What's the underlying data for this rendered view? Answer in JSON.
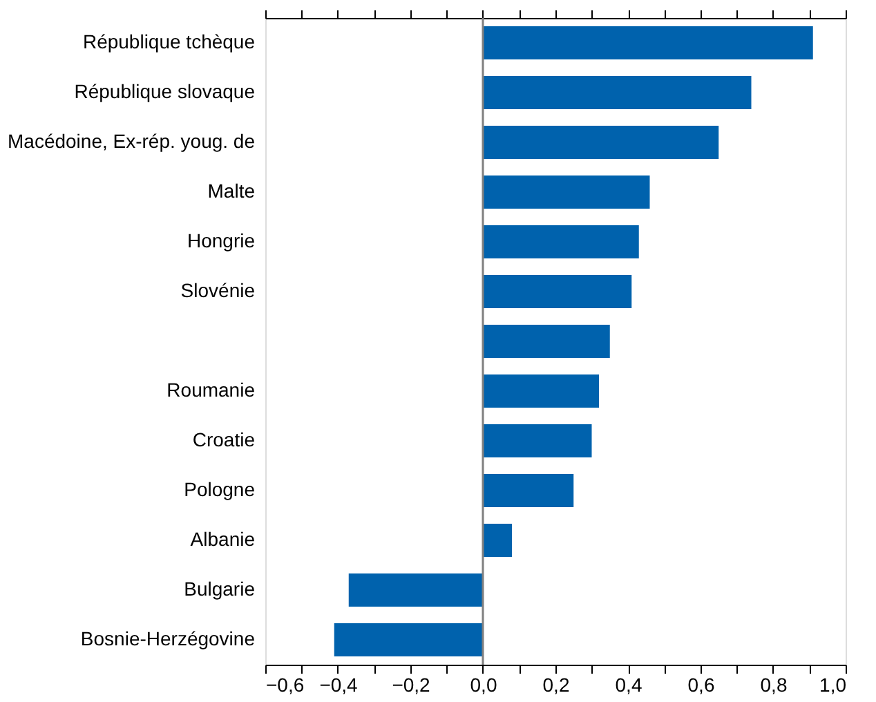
{
  "chart_data": {
    "type": "bar",
    "orientation": "horizontal",
    "categories": [
      "République tchèque",
      "République slovaque",
      "Macédoine, Ex-rép. youg. de",
      "Malte",
      "Hongrie",
      "Slovénie",
      null,
      "Roumanie",
      "Croatie",
      "Pologne",
      "Albanie",
      "Bulgarie",
      "Bosnie-Herzégovine"
    ],
    "values": [
      0.91,
      0.74,
      0.65,
      0.46,
      0.43,
      0.41,
      0.35,
      0.32,
      0.3,
      0.25,
      0.08,
      -0.37,
      -0.41
    ],
    "color": "#0062ad",
    "xlim": [
      -0.6,
      1.0
    ],
    "xticks": [
      {
        "value": -0.6,
        "label": "−0,6"
      },
      {
        "value": -0.5,
        "label": null
      },
      {
        "value": -0.4,
        "label": "−0,4"
      },
      {
        "value": -0.3,
        "label": null
      },
      {
        "value": -0.2,
        "label": "−0,2"
      },
      {
        "value": -0.1,
        "label": null
      },
      {
        "value": 0,
        "label": "0,0"
      },
      {
        "value": 0.1,
        "label": null
      },
      {
        "value": 0.2,
        "label": "0,2"
      },
      {
        "value": 0.3,
        "label": null
      },
      {
        "value": 0.4,
        "label": "0,4"
      },
      {
        "value": 0.5,
        "label": null
      },
      {
        "value": 0.6,
        "label": "0,6"
      },
      {
        "value": 0.7,
        "label": null
      },
      {
        "value": 0.8,
        "label": "0,8"
      },
      {
        "value": 0.9,
        "label": null
      },
      {
        "value": 1.0,
        "label": "1,0"
      }
    ],
    "ref_lines": [
      {
        "axis": "x",
        "value": 0,
        "color": "#808080"
      }
    ],
    "grid": false
  }
}
